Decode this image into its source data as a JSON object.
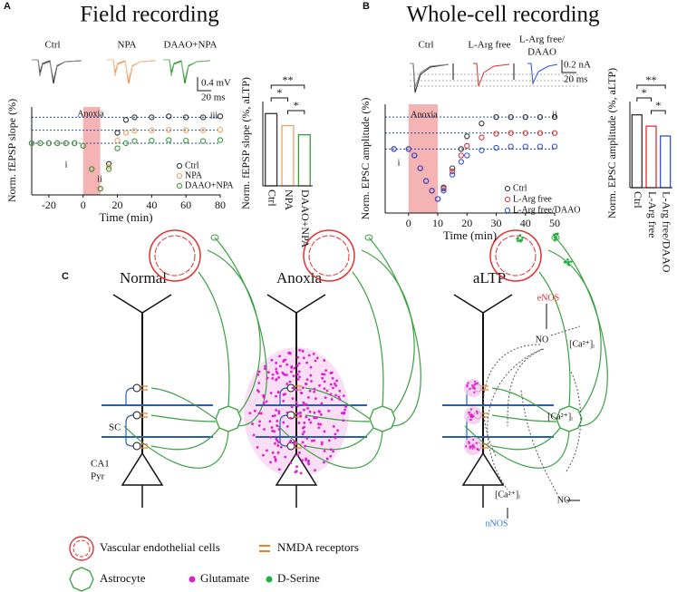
{
  "chart_data": [
    {
      "type": "line",
      "panel_label": "A",
      "title": "Field recording",
      "trace_labels": [
        "Ctrl",
        "NPA",
        "DAAO+NPA"
      ],
      "scale_labels": [
        "0.4 mV",
        "20 ms"
      ],
      "xlabel": "Time (min)",
      "ylabel": "Norm. fEPSP slope (%)",
      "x": [
        -30,
        -25,
        -20,
        -15,
        -10,
        -5,
        0,
        5,
        10,
        15,
        20,
        25,
        30,
        40,
        50,
        60,
        70,
        80
      ],
      "series": [
        {
          "name": "Ctrl",
          "color": "#333333",
          "values": [
            100,
            100,
            100,
            100,
            100,
            100,
            95,
            50,
            12,
            60,
            120,
            145,
            150,
            150,
            152,
            150,
            150,
            152
          ]
        },
        {
          "name": "NPA",
          "color": "#f0a060",
          "values": [
            100,
            100,
            100,
            100,
            100,
            100,
            95,
            50,
            12,
            55,
            105,
            120,
            124,
            125,
            126,
            125,
            125,
            126
          ]
        },
        {
          "name": "DAAO+NPA",
          "color": "#3a9a3a",
          "values": [
            100,
            100,
            100,
            100,
            100,
            100,
            95,
            50,
            12,
            50,
            90,
            100,
            104,
            105,
            106,
            105,
            104,
            106
          ]
        }
      ],
      "xlim": [
        -30,
        80
      ],
      "xticks": [
        -20,
        0,
        20,
        40,
        60,
        80
      ],
      "ylim": [
        0,
        170
      ],
      "hlines": [
        100,
        125,
        150
      ],
      "shade": {
        "range": [
          0,
          10
        ],
        "label": "Anoxia",
        "color": "#f4a0a0"
      },
      "annotations": [
        "Anoxia",
        "i",
        "ii",
        "iii"
      ]
    },
    {
      "type": "bar",
      "ylabel": "Norm. fEPSP slope (%, aLTP)",
      "categories": [
        "Ctrl",
        "NPA",
        "DAAO+NPA"
      ],
      "values": [
        150,
        125,
        106
      ],
      "colors": [
        "#333333",
        "#f0a060",
        "#3a9a3a"
      ],
      "ylim": [
        0,
        175
      ],
      "significance": [
        "**",
        "*",
        "*"
      ]
    },
    {
      "type": "line",
      "panel_label": "B",
      "title": "Whole-cell recording",
      "trace_labels": [
        "Ctrl",
        "L-Arg free",
        [
          "L-Arg free/",
          "DAAO"
        ]
      ],
      "scale_labels": [
        "0.2 nA",
        "20 ms"
      ],
      "xlabel": "Time (min)",
      "ylabel": "Norm. EPSC amplitude (%)",
      "x": [
        -5,
        0,
        2,
        4,
        6,
        8,
        10,
        12,
        15,
        18,
        20,
        25,
        30,
        35,
        40,
        45,
        50
      ],
      "series": [
        {
          "name": "Ctrl",
          "color": "#333333",
          "values": [
            100,
            100,
            90,
            70,
            50,
            35,
            22,
            40,
            70,
            100,
            120,
            140,
            150,
            150,
            150,
            150,
            150
          ]
        },
        {
          "name": "L-Arg free",
          "color": "#e03030",
          "values": [
            100,
            100,
            90,
            70,
            50,
            35,
            22,
            38,
            65,
            90,
            105,
            118,
            124,
            125,
            125,
            125,
            125
          ]
        },
        {
          "name": "L-Arg free/DAAO",
          "color": "#3050e0",
          "values": [
            100,
            100,
            90,
            70,
            50,
            35,
            22,
            35,
            60,
            80,
            90,
            98,
            102,
            104,
            104,
            104,
            104
          ]
        }
      ],
      "xlim": [
        -8,
        50
      ],
      "xticks": [
        0,
        10,
        20,
        30,
        40,
        50
      ],
      "ylim": [
        0,
        170
      ],
      "hlines": [
        100,
        125,
        150
      ],
      "shade": {
        "range": [
          0,
          10
        ],
        "label": "Anoxia",
        "color": "#f4a0a0"
      },
      "annotations": [
        "Anoxia",
        "i",
        "ii"
      ]
    },
    {
      "type": "bar",
      "ylabel": "Norm. EPSC amplitude (%, aLTP)",
      "categories": [
        "Ctrl",
        "L-Arg free",
        "L-Arg free/DAAO"
      ],
      "values": [
        148,
        125,
        105
      ],
      "colors": [
        "#333333",
        "#e03030",
        "#3050e0"
      ],
      "ylim": [
        0,
        175
      ],
      "significance": [
        "**",
        "*",
        "*"
      ]
    }
  ],
  "diagram": {
    "panel_label": "C",
    "columns": [
      "Normal",
      "Anoxia",
      "aLTP"
    ],
    "labels": {
      "sc": "SC",
      "ca1": "CA1",
      "pyr": "Pyr"
    },
    "altp_labels": [
      "eNOS",
      "NO",
      "[Ca²⁺]ᵢ",
      "[Ca²⁺]ᵢ",
      "[Ca²⁺]ᵢ",
      "NO",
      "nNOS"
    ],
    "legend": [
      "Vascular endothelial cells",
      "NMDA receptors",
      "Astrocyte",
      "Glutamate",
      "D-Serine"
    ]
  }
}
